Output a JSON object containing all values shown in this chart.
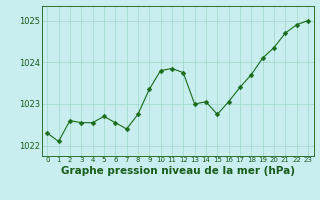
{
  "x": [
    0,
    1,
    2,
    3,
    4,
    5,
    6,
    7,
    8,
    9,
    10,
    11,
    12,
    13,
    14,
    15,
    16,
    17,
    18,
    19,
    20,
    21,
    22,
    23
  ],
  "y": [
    1022.3,
    1022.1,
    1022.6,
    1022.55,
    1022.55,
    1022.7,
    1022.55,
    1022.4,
    1022.75,
    1023.35,
    1023.8,
    1023.85,
    1023.75,
    1023.0,
    1023.05,
    1022.75,
    1023.05,
    1023.4,
    1023.7,
    1024.1,
    1024.35,
    1024.7,
    1024.9,
    1025.0
  ],
  "line_color": "#1a6b1a",
  "marker": "D",
  "marker_size": 2.5,
  "bg_color": "#c8eef0",
  "grid_color": "#a0d8c8",
  "xlabel": "Graphe pression niveau de la mer (hPa)",
  "xlabel_fontsize": 7.5,
  "xlabel_color": "#1a5c1a",
  "tick_color": "#1a5c1a",
  "ylabel_ticks": [
    1022,
    1023,
    1024,
    1025
  ],
  "xlim": [
    -0.5,
    23.5
  ],
  "ylim": [
    1021.75,
    1025.35
  ],
  "title": ""
}
